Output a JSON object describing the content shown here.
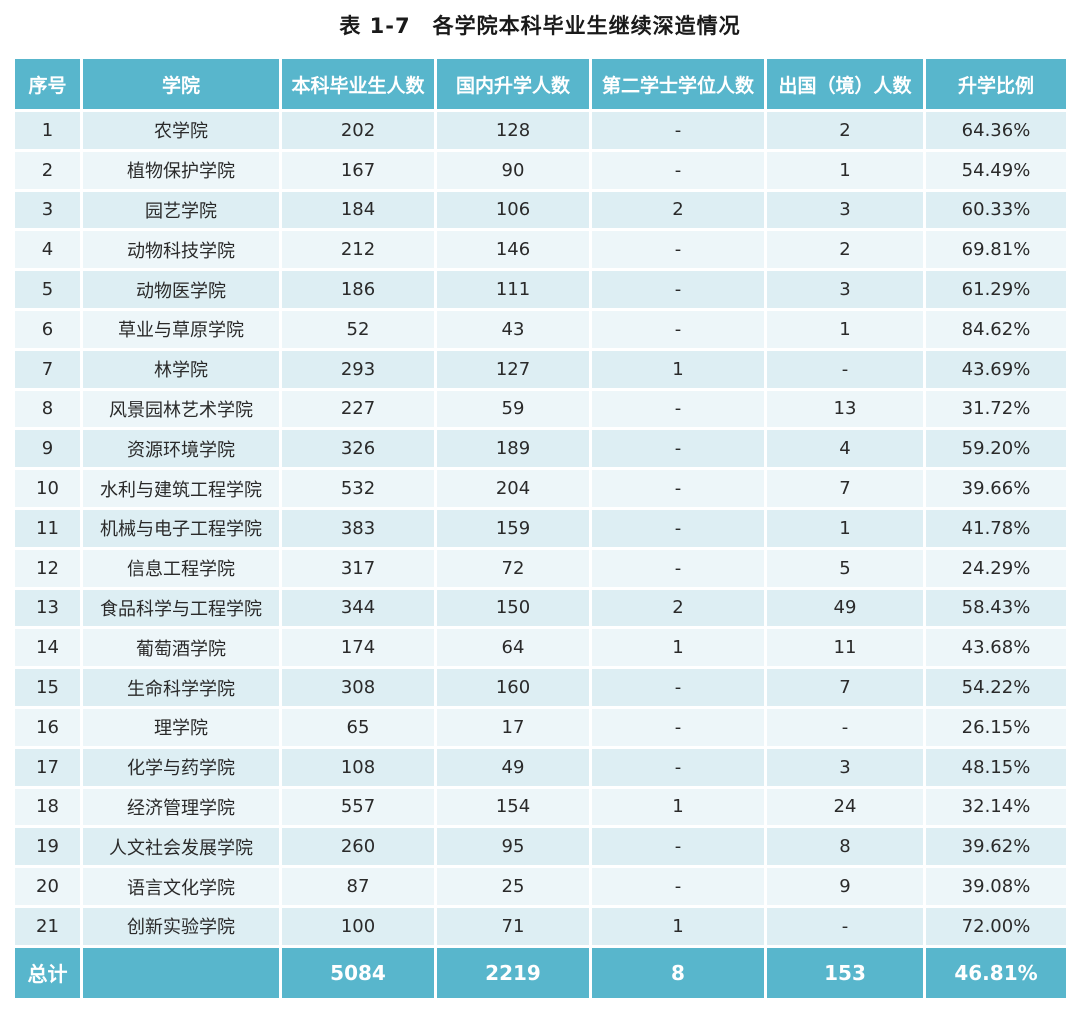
{
  "title": "表 1-7　各学院本科毕业生继续深造情况",
  "headers": [
    "序号",
    "学院",
    "本科毕业生人数",
    "国内升学人数",
    "第二学士学位人数",
    "出国（境）人数",
    "升学比例"
  ],
  "rows": [
    [
      "1",
      "农学院",
      "202",
      "128",
      "-",
      "2",
      "64.36%"
    ],
    [
      "2",
      "植物保护学院",
      "167",
      "90",
      "-",
      "1",
      "54.49%"
    ],
    [
      "3",
      "园艺学院",
      "184",
      "106",
      "2",
      "3",
      "60.33%"
    ],
    [
      "4",
      "动物科技学院",
      "212",
      "146",
      "-",
      "2",
      "69.81%"
    ],
    [
      "5",
      "动物医学院",
      "186",
      "111",
      "-",
      "3",
      "61.29%"
    ],
    [
      "6",
      "草业与草原学院",
      "52",
      "43",
      "-",
      "1",
      "84.62%"
    ],
    [
      "7",
      "林学院",
      "293",
      "127",
      "1",
      "-",
      "43.69%"
    ],
    [
      "8",
      "风景园林艺术学院",
      "227",
      "59",
      "-",
      "13",
      "31.72%"
    ],
    [
      "9",
      "资源环境学院",
      "326",
      "189",
      "-",
      "4",
      "59.20%"
    ],
    [
      "10",
      "水利与建筑工程学院",
      "532",
      "204",
      "-",
      "7",
      "39.66%"
    ],
    [
      "11",
      "机械与电子工程学院",
      "383",
      "159",
      "-",
      "1",
      "41.78%"
    ],
    [
      "12",
      "信息工程学院",
      "317",
      "72",
      "-",
      "5",
      "24.29%"
    ],
    [
      "13",
      "食品科学与工程学院",
      "344",
      "150",
      "2",
      "49",
      "58.43%"
    ],
    [
      "14",
      "葡萄酒学院",
      "174",
      "64",
      "1",
      "11",
      "43.68%"
    ],
    [
      "15",
      "生命科学学院",
      "308",
      "160",
      "-",
      "7",
      "54.22%"
    ],
    [
      "16",
      "理学院",
      "65",
      "17",
      "-",
      "-",
      "26.15%"
    ],
    [
      "17",
      "化学与药学院",
      "108",
      "49",
      "-",
      "3",
      "48.15%"
    ],
    [
      "18",
      "经济管理学院",
      "557",
      "154",
      "1",
      "24",
      "32.14%"
    ],
    [
      "19",
      "人文社会发展学院",
      "260",
      "95",
      "-",
      "8",
      "39.62%"
    ],
    [
      "20",
      "语言文化学院",
      "87",
      "25",
      "-",
      "9",
      "39.08%"
    ],
    [
      "21",
      "创新实验学院",
      "100",
      "71",
      "1",
      "-",
      "72.00%"
    ]
  ],
  "total": {
    "label": "总计",
    "graduates": "5084",
    "domestic": "2219",
    "second_degree": "8",
    "abroad": "153",
    "ratio": "46.81%"
  },
  "colors": {
    "header_bg": "#58b6cc",
    "row_odd": "#ddeef3",
    "row_even": "#edf6f9"
  }
}
